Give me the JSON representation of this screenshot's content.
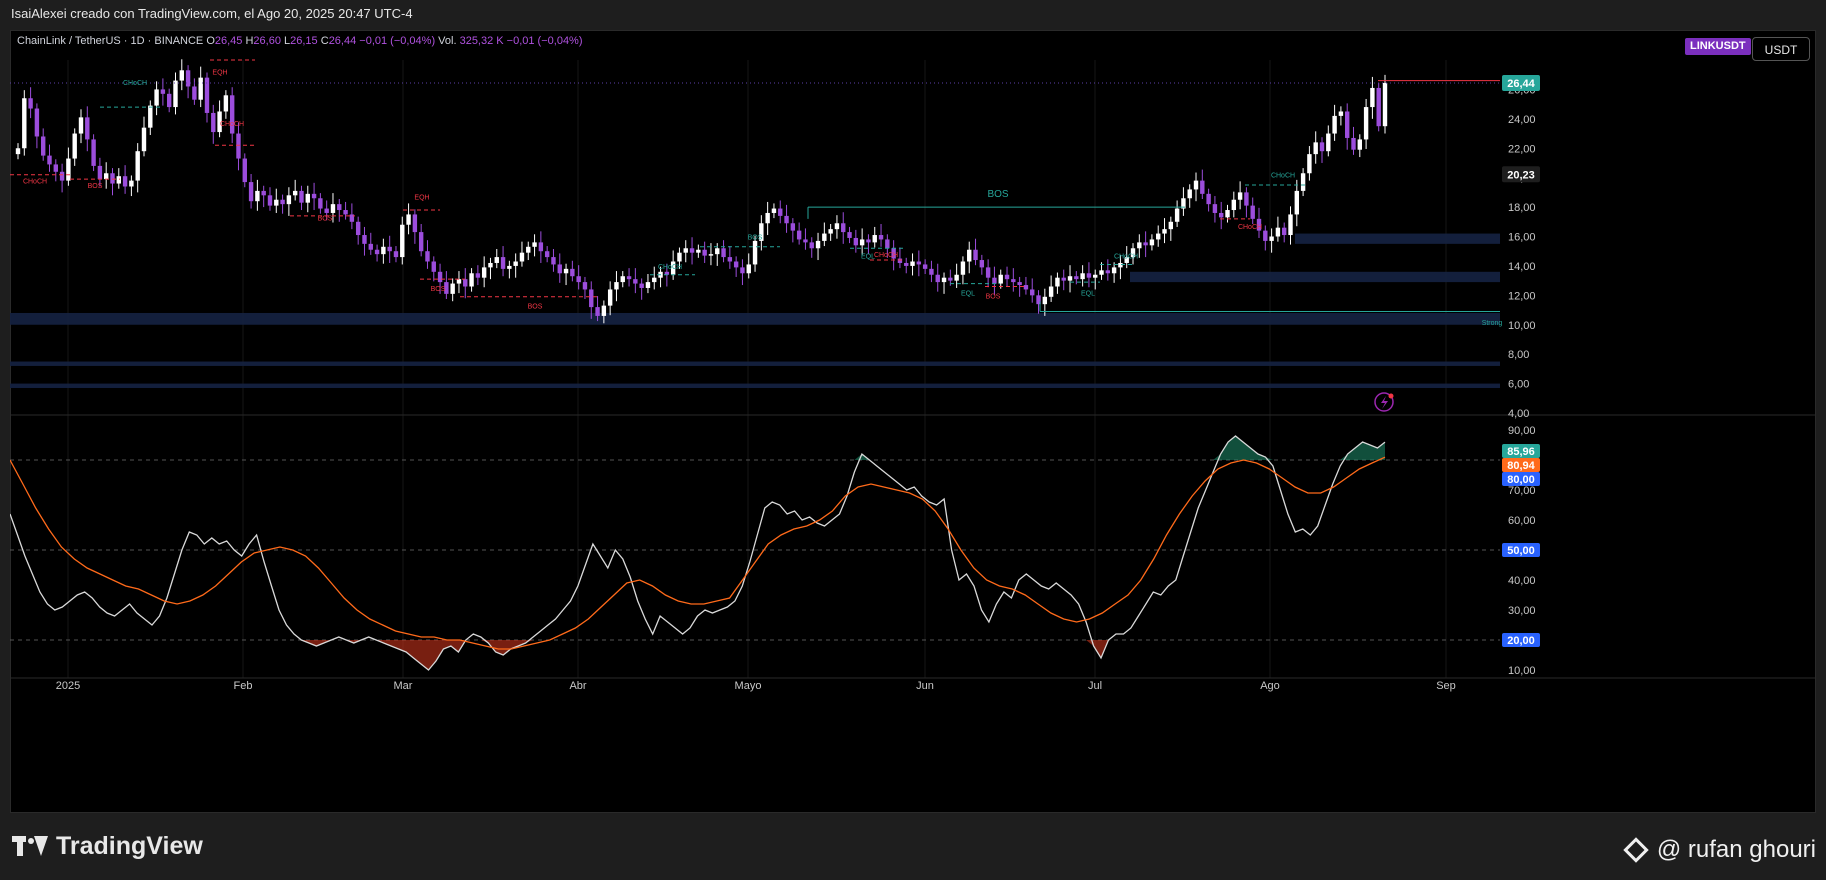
{
  "header": {
    "credit": "IsaiAlexei creado con TradingView.com, el Ago 20, 2025 20:47 UTC-4",
    "symbol_title": "ChainLink / TetherUS · 1D · BINANCE",
    "ohlc": [
      {
        "label": "O",
        "value": "26,45"
      },
      {
        "label": "H",
        "value": "26,60"
      },
      {
        "label": "L",
        "value": "26,15"
      },
      {
        "label": "C",
        "value": "26,44"
      }
    ],
    "change": "−0,01 (−0,04%)",
    "vol_label": "Vol.",
    "vol_value": "325,32 K",
    "vol_change": "−0,01 (−0,04%)",
    "symbol_badge": "LINKUSDT",
    "currency_button": "USDT"
  },
  "colors": {
    "background": "#000000",
    "candle_up": "#ffffff",
    "candle_down": "#9c4ddc",
    "rsi_line": "#d9d9d9",
    "rsi_ma": "#ff6a1a",
    "overbought_fill": "#1f8f6e",
    "oversold_fill": "#c8341c",
    "zone": "#14213f",
    "bos_bull": "#26a69a",
    "bos_bear": "#f23645"
  },
  "chart_data": [
    {
      "type": "candlestick",
      "title": "ChainLink / TetherUS · 1D · BINANCE",
      "x_axis": [
        "2025",
        "Feb",
        "Mar",
        "Abr",
        "Mayo",
        "Jun",
        "Jul",
        "Ago",
        "Sep"
      ],
      "y_ticks": [
        "26,00",
        "24,00",
        "22,00",
        "20,00",
        "18,00",
        "16,00",
        "14,00",
        "12,00",
        "10,00",
        "8,00",
        "6,00",
        "4,00"
      ],
      "ylim": [
        4,
        28
      ],
      "price_labels": [
        {
          "value": "26,44",
          "color": "#26a69a"
        },
        {
          "value": "20,23",
          "color": "#1e1e1e"
        }
      ],
      "start_date": "2024-12-18",
      "close": [
        22.0,
        25.4,
        24.7,
        22.8,
        21.5,
        20.9,
        20.4,
        19.8,
        21.3,
        23.0,
        24.1,
        22.6,
        20.8,
        19.9,
        20.3,
        19.6,
        20.1,
        19.4,
        19.8,
        21.8,
        23.4,
        24.9,
        26.0,
        25.7,
        24.8,
        26.6,
        27.3,
        26.2,
        25.3,
        26.8,
        24.4,
        23.1,
        24.5,
        25.6,
        23.0,
        21.3,
        19.7,
        18.4,
        19.1,
        18.8,
        18.1,
        18.5,
        18.2,
        18.8,
        19.1,
        18.3,
        18.9,
        18.6,
        17.9,
        17.6,
        18.2,
        17.8,
        17.5,
        17.0,
        16.1,
        15.5,
        15.1,
        14.8,
        15.3,
        15.0,
        14.6,
        16.8,
        17.5,
        16.3,
        15.0,
        14.3,
        13.6,
        12.9,
        12.1,
        12.8,
        13.1,
        12.6,
        13.5,
        13.2,
        13.9,
        14.2,
        14.6,
        13.8,
        14.0,
        14.3,
        14.9,
        15.3,
        15.6,
        15.0,
        14.6,
        14.1,
        13.5,
        13.8,
        13.3,
        12.9,
        12.4,
        11.2,
        10.6,
        11.3,
        12.4,
        12.9,
        13.3,
        13.1,
        12.8,
        12.5,
        12.9,
        13.2,
        13.6,
        13.4,
        14.3,
        14.9,
        15.2,
        14.9,
        15.1,
        14.7,
        14.8,
        15.2,
        14.6,
        14.3,
        13.9,
        13.5,
        14.1,
        15.7,
        16.9,
        17.6,
        17.9,
        17.4,
        16.9,
        16.4,
        15.8,
        15.6,
        15.2,
        15.7,
        16.2,
        16.5,
        16.9,
        16.3,
        15.9,
        15.4,
        15.8,
        15.6,
        16.1,
        15.8,
        15.2,
        14.5,
        14.2,
        14.0,
        14.3,
        14.1,
        13.8,
        13.4,
        12.9,
        13.2,
        13.0,
        13.4,
        14.3,
        15.1,
        14.4,
        13.9,
        13.2,
        12.8,
        13.4,
        13.1,
        12.9,
        12.7,
        12.4,
        12.0,
        11.4,
        11.9,
        12.6,
        13.2,
        13.0,
        13.3,
        13.1,
        13.5,
        13.2,
        13.4,
        13.7,
        13.5,
        13.9,
        14.2,
        14.6,
        15.2,
        15.6,
        15.4,
        15.8,
        16.2,
        16.5,
        17.0,
        17.9,
        18.6,
        19.2,
        19.8,
        18.9,
        18.2,
        17.6,
        17.3,
        17.8,
        18.5,
        19.0,
        18.1,
        17.2,
        16.4,
        15.7,
        16.0,
        16.6,
        16.1,
        17.5,
        19.1,
        20.3,
        21.6,
        22.4,
        21.8,
        23.0,
        24.2,
        24.5,
        22.7,
        21.9,
        22.6,
        24.8,
        26.1,
        23.5,
        26.44
      ]
    },
    {
      "type": "line",
      "title": "",
      "y_ticks": [
        "90,00",
        "70,00",
        "60,00",
        "40,00",
        "30,00",
        "10,00"
      ],
      "ylim": [
        5,
        95
      ],
      "levels": [
        80,
        50,
        20
      ],
      "value_labels": [
        {
          "value": "85,96",
          "color": "#26a69a"
        },
        {
          "value": "80,94",
          "color": "#ff6a1a"
        },
        {
          "value": "80,00",
          "color": "#2962ff"
        },
        {
          "value": "50,00",
          "color": "#2962ff"
        },
        {
          "value": "20,00",
          "color": "#2962ff"
        }
      ],
      "series": [
        {
          "values": [
            62,
            55,
            48,
            42,
            36,
            32,
            30,
            31,
            33,
            35,
            36,
            34,
            31,
            29,
            28,
            30,
            32,
            29,
            27,
            25,
            28,
            34,
            42,
            50,
            56,
            55,
            52,
            54,
            52,
            53,
            50,
            48,
            52,
            55,
            46,
            38,
            30,
            25,
            22,
            20,
            19,
            18,
            19,
            20,
            21,
            20,
            19,
            20,
            21,
            20,
            19,
            18,
            17,
            16,
            14,
            12,
            10,
            13,
            17,
            18,
            16,
            20,
            22,
            21,
            19,
            16,
            15,
            17,
            18,
            19,
            21,
            23,
            25,
            27,
            30,
            33,
            38,
            45,
            52,
            48,
            44,
            50,
            47,
            41,
            33,
            27,
            22,
            28,
            26,
            24,
            22,
            24,
            28,
            30,
            29,
            30,
            31,
            33,
            38,
            46,
            55,
            64,
            66,
            65,
            62,
            63,
            60,
            61,
            59,
            58,
            60,
            62,
            68,
            76,
            82,
            80,
            78,
            76,
            74,
            72,
            70,
            71,
            68,
            66,
            65,
            67,
            50,
            40,
            42,
            38,
            30,
            26,
            32,
            36,
            34,
            40,
            42,
            40,
            38,
            37,
            39,
            37,
            35,
            32,
            26,
            18,
            14,
            20,
            22,
            22,
            24,
            28,
            32,
            36,
            35,
            38,
            40,
            48,
            56,
            64,
            70,
            76,
            82,
            86,
            88,
            86,
            84,
            82,
            81,
            78,
            70,
            62,
            56,
            57,
            55,
            58,
            65,
            72,
            78,
            82,
            84,
            86,
            85,
            84,
            85.96
          ]
        },
        {
          "values": [
            80,
            72,
            64,
            57,
            51,
            47,
            44,
            42,
            40,
            38,
            37,
            35,
            33,
            32,
            33,
            35,
            38,
            42,
            46,
            49,
            50,
            51,
            50,
            48,
            44,
            39,
            34,
            30,
            27,
            25,
            23,
            22,
            21,
            21,
            20,
            20,
            19,
            18,
            17,
            17,
            18,
            19,
            20,
            22,
            24,
            27,
            31,
            35,
            39,
            40,
            38,
            35,
            33,
            32,
            32,
            33,
            34,
            40,
            46,
            52,
            55,
            57,
            58,
            60,
            63,
            68,
            71,
            72,
            71,
            70,
            69,
            67,
            63,
            57,
            50,
            44,
            40,
            38,
            37,
            35,
            32,
            29,
            27,
            26,
            27,
            29,
            32,
            35,
            40,
            47,
            55,
            62,
            68,
            73,
            77,
            79,
            80,
            79,
            77,
            74,
            71,
            69,
            69,
            71,
            74,
            77,
            79,
            80.94
          ]
        }
      ]
    }
  ],
  "annotations": [
    {
      "text": "EQH"
    },
    {
      "text": "CHoCH"
    },
    {
      "text": "CHoCH"
    },
    {
      "text": "CHoCH"
    },
    {
      "text": "BOS"
    },
    {
      "text": "BOS"
    },
    {
      "text": "EQH"
    },
    {
      "text": "BOS"
    },
    {
      "text": "BOS"
    },
    {
      "text": "CHoCH"
    },
    {
      "text": "BOS"
    },
    {
      "text": "BOS"
    },
    {
      "text": "EQL"
    },
    {
      "text": "CHoCH"
    },
    {
      "text": "EQL"
    },
    {
      "text": "BOS"
    },
    {
      "text": "CHoCH"
    },
    {
      "text": "EQL"
    },
    {
      "text": "CHoCH"
    },
    {
      "text": "CHoCH"
    },
    {
      "text": "Strong"
    }
  ],
  "footer": {
    "logo_text": "TradingView",
    "watermark": "@ rufan ghouri"
  }
}
